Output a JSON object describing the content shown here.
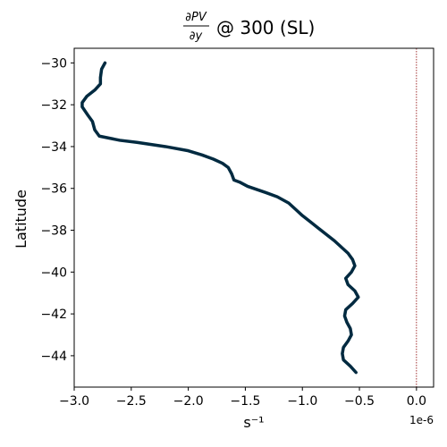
{
  "chart_data": {
    "type": "line",
    "title": {
      "numerator": "∂PV",
      "denominator": "∂y",
      "suffix": "@ 300 (SL)"
    },
    "xlabel": "s⁻¹",
    "ylabel": "Latitude",
    "x_offset_label": "1e-6",
    "x_scale": 1e-06,
    "xlim": [
      -3.0,
      0.15
    ],
    "ylim": [
      -45.5,
      -29.3
    ],
    "xticks": [
      -3.0,
      -2.5,
      -2.0,
      -1.5,
      -1.0,
      -0.5,
      0.0
    ],
    "xtick_labels": [
      "−3.0",
      "−2.5",
      "−2.0",
      "−1.5",
      "−1.0",
      "−0.5",
      "0.0"
    ],
    "yticks": [
      -44,
      -42,
      -40,
      -38,
      -36,
      -34,
      -32,
      -30
    ],
    "ytick_labels": [
      "−44",
      "−42",
      "−40",
      "−38",
      "−36",
      "−34",
      "−32",
      "−30"
    ],
    "grid": false,
    "reference_line": {
      "x": 0.0,
      "color": "#8b0000",
      "style": "dotted"
    },
    "series": [
      {
        "color": "#002a40",
        "points": [
          [
            -2.73,
            -30.0
          ],
          [
            -2.76,
            -30.3
          ],
          [
            -2.77,
            -30.7
          ],
          [
            -2.77,
            -31.0
          ],
          [
            -2.82,
            -31.3
          ],
          [
            -2.89,
            -31.6
          ],
          [
            -2.93,
            -31.9
          ],
          [
            -2.93,
            -32.1
          ],
          [
            -2.88,
            -32.5
          ],
          [
            -2.84,
            -32.8
          ],
          [
            -2.82,
            -33.2
          ],
          [
            -2.78,
            -33.5
          ],
          [
            -2.6,
            -33.7
          ],
          [
            -2.45,
            -33.8
          ],
          [
            -2.2,
            -34.0
          ],
          [
            -2.0,
            -34.2
          ],
          [
            -1.88,
            -34.4
          ],
          [
            -1.78,
            -34.6
          ],
          [
            -1.7,
            -34.8
          ],
          [
            -1.65,
            -35.0
          ],
          [
            -1.62,
            -35.3
          ],
          [
            -1.6,
            -35.6
          ],
          [
            -1.55,
            -35.7
          ],
          [
            -1.48,
            -35.9
          ],
          [
            -1.32,
            -36.2
          ],
          [
            -1.22,
            -36.4
          ],
          [
            -1.12,
            -36.7
          ],
          [
            -1.06,
            -37.0
          ],
          [
            -1.0,
            -37.3
          ],
          [
            -0.93,
            -37.6
          ],
          [
            -0.86,
            -37.9
          ],
          [
            -0.79,
            -38.2
          ],
          [
            -0.72,
            -38.5
          ],
          [
            -0.66,
            -38.8
          ],
          [
            -0.6,
            -39.1
          ],
          [
            -0.56,
            -39.4
          ],
          [
            -0.54,
            -39.7
          ],
          [
            -0.57,
            -40.0
          ],
          [
            -0.62,
            -40.3
          ],
          [
            -0.6,
            -40.6
          ],
          [
            -0.54,
            -40.9
          ],
          [
            -0.51,
            -41.2
          ],
          [
            -0.56,
            -41.5
          ],
          [
            -0.62,
            -41.8
          ],
          [
            -0.63,
            -42.1
          ],
          [
            -0.61,
            -42.4
          ],
          [
            -0.58,
            -42.7
          ],
          [
            -0.57,
            -43.0
          ],
          [
            -0.6,
            -43.3
          ],
          [
            -0.64,
            -43.6
          ],
          [
            -0.65,
            -43.9
          ],
          [
            -0.64,
            -44.2
          ],
          [
            -0.58,
            -44.5
          ],
          [
            -0.53,
            -44.8
          ]
        ]
      }
    ]
  }
}
